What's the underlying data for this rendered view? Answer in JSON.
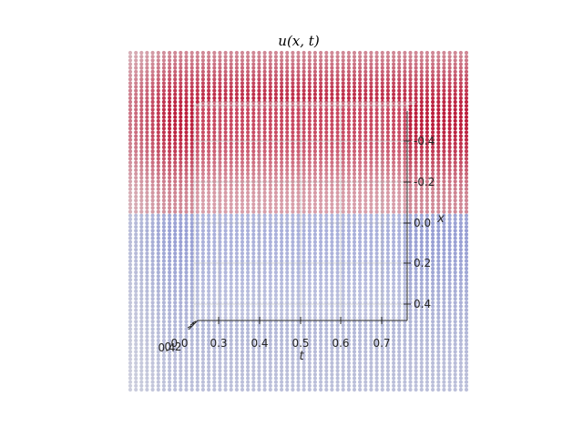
{
  "chart_data": {
    "type": "scatter",
    "projection": "3d",
    "title": "u(x, t)",
    "xlabel": "t",
    "ylabel": "x",
    "zlabel": "",
    "t_ticks": [
      "0.3",
      "0.4",
      "0.5",
      "0.6",
      "0.7"
    ],
    "x_ticks": [
      "-0.4",
      "-0.2",
      "0.0",
      "0.2",
      "0.4"
    ],
    "z_ticks_overlapped": [
      "0.2",
      "0.4",
      "0.0"
    ],
    "t_range": [
      0.22,
      0.78
    ],
    "x_range": [
      -0.5,
      0.5
    ],
    "colormap": "coolwarm",
    "color_scale": {
      "low": "#3b4cc0",
      "mid": "#dddddd",
      "high": "#b40426"
    },
    "u_values_by_x": {
      "x": [
        -0.5,
        -0.45,
        -0.4,
        -0.35,
        -0.3,
        -0.25,
        -0.2,
        -0.15,
        -0.1,
        -0.05,
        0.0,
        0.05,
        0.1,
        0.15,
        0.2,
        0.25,
        0.3,
        0.35,
        0.4,
        0.45,
        0.5
      ],
      "u": [
        0.45,
        0.62,
        0.82,
        0.95,
        1.0,
        0.96,
        0.86,
        0.7,
        0.55,
        0.45,
        -0.45,
        -0.5,
        -0.48,
        -0.45,
        -0.4,
        -0.36,
        -0.33,
        -0.3,
        -0.28,
        -0.26,
        -0.25
      ]
    },
    "grid": true
  }
}
